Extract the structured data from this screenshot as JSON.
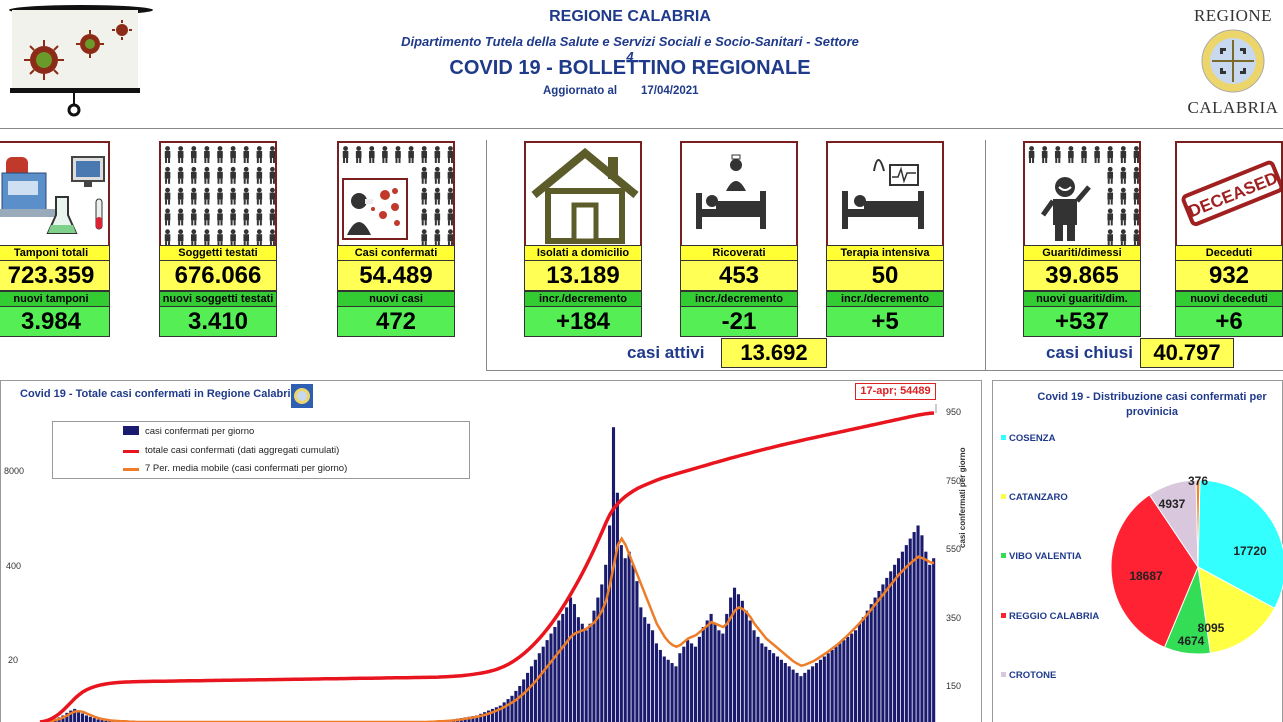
{
  "header": {
    "region": "REGIONE CALABRIA",
    "department": "Dipartimento Tutela della Salute e Servizi Sociali e Socio-Sanitari - Settore 4",
    "bulletin": "COVID 19 - BOLLETTINO REGIONALE",
    "updated_label": "Aggiornato al",
    "updated_date": "17/04/2021",
    "logo_top": "REGIONE",
    "logo_bottom": "CALABRIA"
  },
  "cards": [
    {
      "label": "Tamponi totali",
      "value": "723.359",
      "sub_label": "nuovi tamponi",
      "sub_value": "3.984",
      "icon": "lab-equipment-icon"
    },
    {
      "label": "Soggetti testati",
      "value": "676.066",
      "sub_label": "nuovi soggetti testati",
      "sub_value": "3.410",
      "icon": "people-grid-icon"
    },
    {
      "label": "Casi confermati",
      "value": "54.489",
      "sub_label": "nuovi casi",
      "sub_value": "472",
      "icon": "infected-person-icon"
    },
    {
      "label": "Isolati a domicilio",
      "value": "13.189",
      "sub_label": "incr./decremento",
      "sub_value": "+184",
      "icon": "house-icon"
    },
    {
      "label": "Ricoverati",
      "value": "453",
      "sub_label": "incr./decremento",
      "sub_value": "-21",
      "icon": "hospital-bed-icon"
    },
    {
      "label": "Terapia intensiva",
      "value": "50",
      "sub_label": "incr./decremento",
      "sub_value": "+5",
      "icon": "icu-bed-icon"
    },
    {
      "label": "Guariti/dimessi",
      "value": "39.865",
      "sub_label": "nuovi guariti/dim.",
      "sub_value": "+537",
      "icon": "recovered-person-icon"
    },
    {
      "label": "Deceduti",
      "value": "932",
      "sub_label": "nuovi deceduti",
      "sub_value": "+6",
      "icon": "deceased-stamp-icon"
    }
  ],
  "totals": {
    "active_label": "casi attivi",
    "active_value": "13.692",
    "closed_label": "casi chiusi",
    "closed_value": "40.797"
  },
  "colors": {
    "title_blue": "#1f3a8a",
    "card_yellow": "#ffff55",
    "card_green": "#55ee55",
    "bar_navy": "#1a1a6e",
    "cumulative_red": "#e8141e",
    "moving_avg_orange": "#ee7d2a"
  },
  "chart_data": [
    {
      "type": "bar",
      "title": "Covid 19 - Totale casi confermati in Regione Calabri",
      "annotation": "17-apr; 54489",
      "legend": [
        "casi confermati per giorno",
        "totale casi confermati (dati aggregati cumulati)",
        "7 Per. media mobile (casi confermati per giorno)"
      ],
      "left_ticks": [
        "8000",
        "400",
        "20"
      ],
      "right_ticks": [
        "950",
        "750",
        "550",
        "350",
        "150"
      ],
      "ylabel_right": "casi confermati per giorno",
      "ylim_right": [
        0,
        1000
      ],
      "daily_cases": [
        0,
        0,
        2,
        5,
        10,
        14,
        20,
        28,
        35,
        40,
        34,
        26,
        20,
        16,
        12,
        8,
        6,
        4,
        3,
        2,
        2,
        1,
        1,
        1,
        0,
        0,
        0,
        0,
        0,
        0,
        0,
        0,
        0,
        0,
        0,
        0,
        0,
        0,
        0,
        0,
        0,
        0,
        0,
        0,
        0,
        0,
        0,
        0,
        0,
        0,
        0,
        0,
        0,
        0,
        0,
        0,
        0,
        0,
        0,
        0,
        0,
        0,
        0,
        0,
        0,
        0,
        0,
        0,
        0,
        0,
        0,
        0,
        0,
        0,
        0,
        0,
        0,
        0,
        0,
        0,
        0,
        0,
        0,
        0,
        0,
        0,
        0,
        0,
        0,
        0,
        0,
        0,
        0,
        0,
        0,
        0,
        0,
        0,
        0,
        0,
        1,
        2,
        3,
        4,
        5,
        6,
        8,
        10,
        12,
        14,
        16,
        18,
        20,
        25,
        30,
        35,
        40,
        45,
        50,
        60,
        70,
        80,
        95,
        110,
        130,
        150,
        170,
        190,
        210,
        230,
        250,
        270,
        290,
        310,
        330,
        350,
        380,
        360,
        320,
        300,
        280,
        300,
        340,
        380,
        420,
        480,
        600,
        900,
        700,
        540,
        500,
        520,
        480,
        430,
        350,
        320,
        300,
        280,
        240,
        220,
        200,
        190,
        180,
        170,
        210,
        230,
        250,
        240,
        230,
        260,
        290,
        310,
        330,
        300,
        280,
        270,
        330,
        380,
        410,
        390,
        370,
        340,
        310,
        280,
        260,
        240,
        230,
        220,
        210,
        200,
        190,
        180,
        170,
        160,
        150,
        140,
        150,
        160,
        170,
        180,
        190,
        200,
        210,
        220,
        230,
        240,
        250,
        260,
        270,
        280,
        300,
        320,
        340,
        360,
        380,
        400,
        420,
        440,
        460,
        480,
        500,
        520,
        540,
        560,
        580,
        600,
        570,
        520,
        480,
        500
      ],
      "moving_average": [
        0,
        0,
        1,
        3,
        6,
        9,
        14,
        20,
        27,
        32,
        33,
        31,
        26,
        21,
        16,
        12,
        9,
        7,
        5,
        4,
        3,
        2,
        2,
        1,
        1,
        0,
        0,
        0,
        0,
        0,
        0,
        0,
        0,
        0,
        0,
        0,
        0,
        0,
        0,
        0,
        0,
        0,
        0,
        0,
        0,
        0,
        0,
        0,
        0,
        0,
        0,
        0,
        0,
        0,
        0,
        0,
        0,
        0,
        0,
        0,
        0,
        0,
        0,
        0,
        0,
        0,
        0,
        0,
        0,
        0,
        0,
        0,
        0,
        0,
        0,
        0,
        0,
        0,
        0,
        0,
        0,
        0,
        0,
        0,
        0,
        0,
        0,
        0,
        0,
        0,
        0,
        0,
        0,
        0,
        0,
        0,
        0,
        0,
        0,
        0,
        1,
        1,
        2,
        2,
        3,
        4,
        5,
        6,
        8,
        10,
        12,
        14,
        16,
        19,
        22,
        26,
        30,
        35,
        40,
        46,
        53,
        60,
        68,
        78,
        88,
        100,
        112,
        125,
        140,
        155,
        170,
        185,
        200,
        215,
        230,
        245,
        260,
        270,
        275,
        280,
        285,
        295,
        305,
        320,
        340,
        370,
        420,
        480,
        540,
        560,
        540,
        510,
        480,
        450,
        420,
        390,
        360,
        330,
        300,
        280,
        260,
        245,
        235,
        230,
        235,
        245,
        255,
        260,
        265,
        275,
        285,
        295,
        305,
        300,
        295,
        290,
        300,
        320,
        340,
        350,
        345,
        335,
        320,
        300,
        285,
        270,
        255,
        245,
        235,
        225,
        215,
        205,
        195,
        185,
        178,
        172,
        175,
        180,
        185,
        192,
        200,
        208,
        216,
        225,
        234,
        244,
        255,
        266,
        278,
        290,
        303,
        316,
        330,
        345,
        360,
        375,
        390,
        405,
        420,
        435,
        450,
        462,
        474,
        485,
        495,
        505,
        500,
        495,
        488,
        485
      ],
      "cumulative": [
        0,
        100,
        300,
        600,
        1000,
        1500,
        2100,
        2800,
        3500,
        4200,
        4800,
        5300,
        5700,
        6000,
        6250,
        6450,
        6600,
        6720,
        6820,
        6900,
        6960,
        7010,
        7050,
        7080,
        7100,
        7120,
        7135,
        7150,
        7160,
        7170,
        7180,
        7190,
        7200,
        7210,
        7220,
        7230,
        7240,
        7250,
        7260,
        7270,
        7280,
        7290,
        7300,
        7310,
        7320,
        7330,
        7340,
        7350,
        7360,
        7370,
        7380,
        7390,
        7400,
        7410,
        7420,
        7430,
        7440,
        7450,
        7460,
        7470,
        7480,
        7490,
        7500,
        7510,
        7520,
        7530,
        7540,
        7550,
        7560,
        7570,
        7580,
        7590,
        7600,
        7610,
        7620,
        7630,
        7640,
        7650,
        7660,
        7670,
        7680,
        7690,
        7700,
        7710,
        7720,
        7730,
        7740,
        7750,
        7760,
        7770,
        7780,
        7790,
        7800,
        7810,
        7820,
        7830,
        7840,
        7850,
        7860,
        7870,
        7880,
        7900,
        7920,
        7950,
        7980,
        8020,
        8060,
        8110,
        8170,
        8240,
        8320,
        8410,
        8510,
        8620,
        8750,
        8900,
        9080,
        9300,
        9560,
        9860,
        10200,
        10600,
        11050,
        11550,
        12100,
        12700,
        13350,
        14050,
        14800,
        15600,
        16450,
        17350,
        18300,
        19300,
        20350,
        21450,
        22600,
        23800,
        25050,
        26350,
        27700,
        29100,
        30550,
        32050,
        33600,
        35200,
        36600,
        37700,
        38500,
        39200,
        39800,
        40300,
        40750,
        41150,
        41500,
        41800,
        42100,
        42380,
        42650,
        42900,
        43130,
        43350,
        43560,
        43760,
        43960,
        44160,
        44360,
        44560,
        44760,
        44960,
        45160,
        45360,
        45560,
        45760,
        45960,
        46150,
        46340,
        46530,
        46720,
        46910,
        47100,
        47280,
        47460,
        47640,
        47820,
        48000,
        48170,
        48340,
        48510,
        48680,
        48840,
        49000,
        49160,
        49320,
        49480,
        49640,
        49800,
        49950,
        50100,
        50250,
        50400,
        50550,
        50700,
        50850,
        51000,
        51150,
        51300,
        51450,
        51600,
        51750,
        51900,
        52050,
        52200,
        52350,
        52500,
        52650,
        52800,
        52950,
        53100,
        53250,
        53400,
        53550,
        53700,
        53850,
        54000,
        54130,
        54250,
        54360,
        54430,
        54489
      ],
      "cumulative_max": 54489
    },
    {
      "type": "pie",
      "title": "Covid 19 - Distribuzione casi confermati per provinicia",
      "slices": [
        {
          "name": "COSENZA",
          "value": 17720,
          "color": "#33ffff"
        },
        {
          "name": "CATANZARO",
          "value": 8095,
          "color": "#ffff44"
        },
        {
          "name": "VIBO VALENTIA",
          "value": 4674,
          "color": "#33dd55"
        },
        {
          "name": "REGGIO CALABRIA",
          "value": 18687,
          "color": "#ff2233"
        },
        {
          "name": "CROTONE",
          "value": 4937,
          "color": "#d9c8dd"
        },
        {
          "name": "",
          "value": 376,
          "color": "#ee8833"
        }
      ],
      "labels": [
        "17720",
        "8095",
        "4674",
        "18687",
        "4937",
        "376"
      ]
    }
  ]
}
